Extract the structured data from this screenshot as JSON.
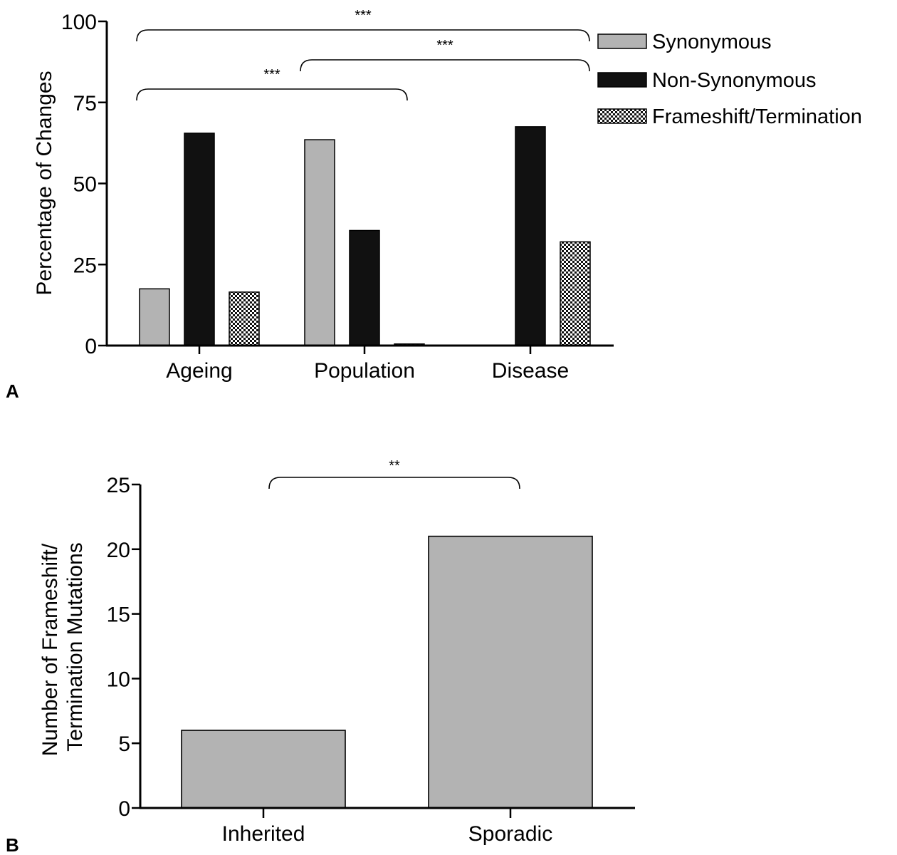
{
  "chart_data": [
    {
      "panel": "A",
      "type": "bar",
      "categories": [
        "Ageing",
        "Population",
        "Disease"
      ],
      "series": [
        {
          "name": "Synonymous",
          "values": [
            17.5,
            63.5,
            0
          ],
          "color": "#b3b3b3",
          "pattern": "solid"
        },
        {
          "name": "Non-Synonymous",
          "values": [
            65.5,
            35.5,
            67.5
          ],
          "color": "#111111",
          "pattern": "solid"
        },
        {
          "name": "Frameshift/Termination",
          "values": [
            16.5,
            0.5,
            32
          ],
          "color": "#444444",
          "pattern": "checker"
        }
      ],
      "ylabel": "Percentage of Changes",
      "ylim": [
        0,
        100
      ],
      "yticks": [
        0,
        25,
        50,
        75,
        100
      ],
      "legend": "top-right",
      "grid": false,
      "annotations": [
        {
          "label": "***",
          "from": "Ageing",
          "to": "Disease"
        },
        {
          "label": "***",
          "from": "Population",
          "to": "Disease"
        },
        {
          "label": "***",
          "from": "Ageing",
          "to": "Population"
        }
      ]
    },
    {
      "panel": "B",
      "type": "bar",
      "categories": [
        "Inherited",
        "Sporadic"
      ],
      "values": [
        6,
        21
      ],
      "color": "#b3b3b3",
      "ylabel": "Number of Frameshift/ Termination Mutations",
      "ylabel_lines": [
        "Number of Frameshift/",
        "Termination Mutations"
      ],
      "ylim": [
        0,
        25
      ],
      "yticks": [
        0,
        5,
        10,
        15,
        20,
        25
      ],
      "grid": false,
      "annotations": [
        {
          "label": "**",
          "from": "Inherited",
          "to": "Sporadic"
        }
      ]
    }
  ]
}
